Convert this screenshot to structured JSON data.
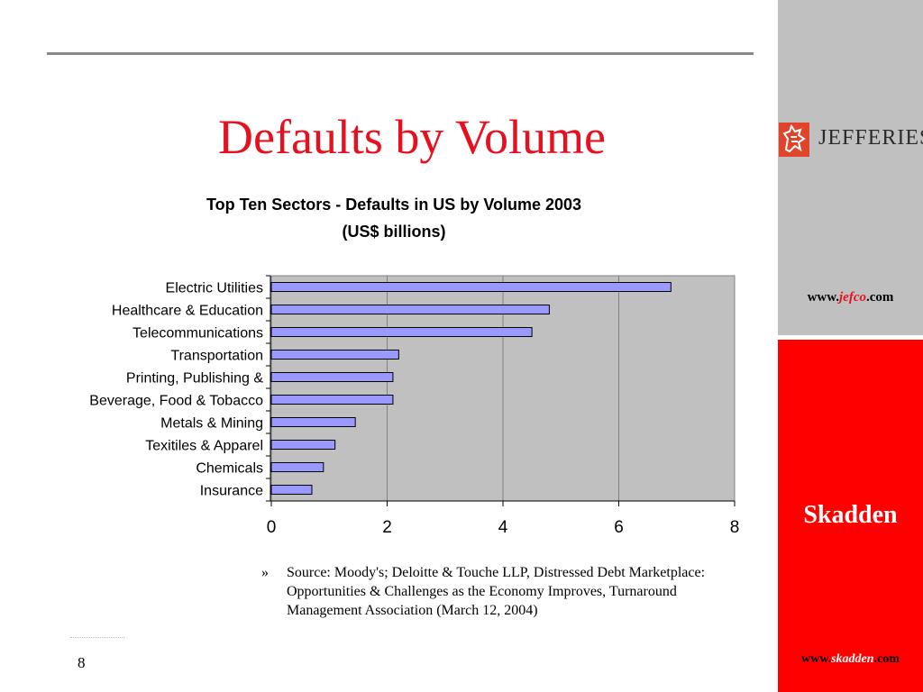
{
  "slide": {
    "title": "Defaults by Volume",
    "page_number": "8"
  },
  "source": {
    "bullet": "»",
    "text": "Source: Moody's; Deloitte & Touche LLP, Distressed Debt Marketplace: Opportunities & Challenges as the Economy Improves, Turnaround Management Association (March 12, 2004)"
  },
  "sidebar": {
    "jefferies_name": "JEFFERIES",
    "jefferies_url_prefix": "www.",
    "jefferies_url_accent": "jefco",
    "jefferies_url_suffix": ".com",
    "skadden_name": "Skadden",
    "skadden_url_prefix": "www.",
    "skadden_url_accent": "skadden",
    "skadden_url_suffix": ".com"
  },
  "colors": {
    "title": "#e8101e",
    "bar_fill": "#9999ff",
    "plot_bg": "#c0c0c0",
    "sidebar_gray": "#c0c0c0",
    "sidebar_red": "#ff0000"
  },
  "chart_data": {
    "type": "bar",
    "orientation": "horizontal",
    "title": "Top Ten Sectors - Defaults in US by Volume 2003",
    "subtitle": "(US$ billions)",
    "categories": [
      "Electric Utilities",
      "Healthcare & Education",
      "Telecommunications",
      "Transportation",
      "Printing, Publishing &",
      "Beverage, Food & Tobacco",
      "Metals & Mining",
      "Texitiles & Apparel",
      "Chemicals",
      "Insurance"
    ],
    "values": [
      6.9,
      4.8,
      4.5,
      2.2,
      2.1,
      2.1,
      1.45,
      1.1,
      0.9,
      0.7
    ],
    "xlim": [
      0,
      8
    ],
    "xticks": [
      0,
      2,
      4,
      6,
      8
    ],
    "xlabel": "",
    "ylabel": "",
    "grid": true,
    "legend": "none"
  }
}
